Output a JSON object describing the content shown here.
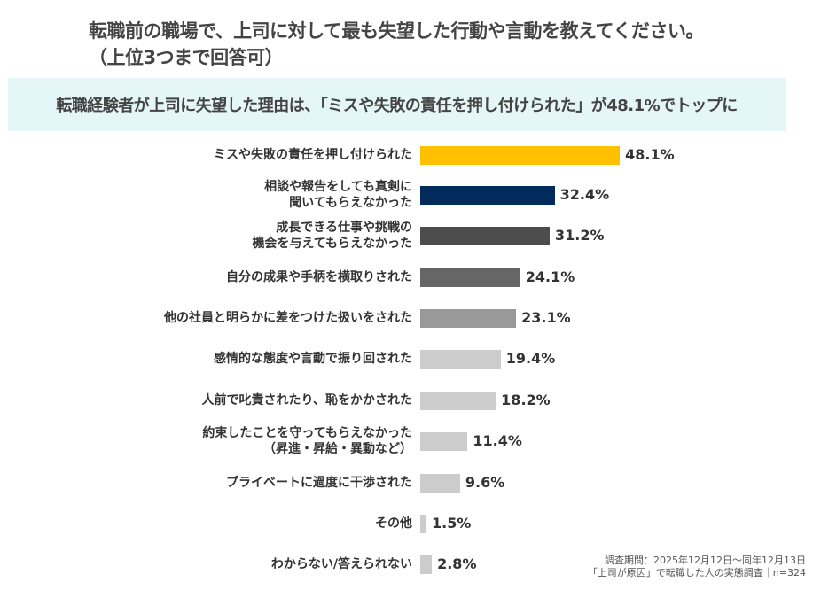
{
  "chart_data": {
    "type": "bar",
    "orientation": "horizontal",
    "title": "転職前の職場で、上司に対して最も失望した行動や言動を教えてください。\n（上位3つまで回答可）",
    "subtitle": "転職経験者が上司に失望した理由は、「ミスや失敗の責任を押し付けられた」が48.1%でトップに",
    "categories": [
      "ミスや失敗の責任を押し付けられた",
      "相談や報告をしても真剣に\n聞いてもらえなかった",
      "成長できる仕事や挑戦の\n機会を与えてもらえなかった",
      "自分の成果や手柄を横取りされた",
      "他の社員と明らかに差をつけた扱いをされた",
      "感情的な態度や言動で振り回された",
      "人前で叱責されたり、恥をかかされた",
      "約束したことを守ってもらえなかった\n（昇進・昇給・異動など）",
      "プライベートに過度に干渉された",
      "その他",
      "わからない/答えられない"
    ],
    "values": [
      48.1,
      32.4,
      31.2,
      24.1,
      23.1,
      19.4,
      18.2,
      11.4,
      9.6,
      1.5,
      2.8
    ],
    "value_labels": [
      "48.1%",
      "32.4%",
      "31.2%",
      "24.1%",
      "23.1%",
      "19.4%",
      "18.2%",
      "11.4%",
      "9.6%",
      "1.5%",
      "2.8%"
    ],
    "colors": [
      "#FFC000",
      "#002B5C",
      "#4D4D4D",
      "#666666",
      "#999999",
      "#CCCCCC",
      "#CCCCCC",
      "#CCCCCC",
      "#CCCCCC",
      "#CCCCCC",
      "#CCCCCC"
    ],
    "unit": "%"
  },
  "note": {
    "line1": "調査期間：2025年12月12日～同年12月13日",
    "line2": "「上司が原因」で転職した人の実態調査｜n=324"
  }
}
